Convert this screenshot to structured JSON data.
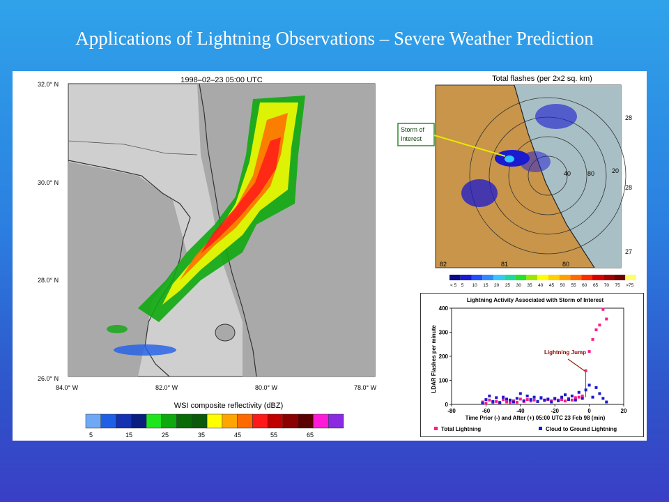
{
  "slide": {
    "title": "Applications of Lightning Observations – Severe Weather Prediction"
  },
  "radar_map": {
    "title": "1998–02–23    05:00 UTC",
    "lat_labels": [
      "32.0° N",
      "30.0° N",
      "28.0° N",
      "26.0° N"
    ],
    "lon_labels": [
      "84.0° W",
      "82.0° W",
      "80.0° W",
      "78.0° W"
    ],
    "legend_title": "WSI composite reflectivity (dBZ)",
    "legend_ticks": [
      "5",
      "15",
      "25",
      "35",
      "45",
      "55",
      "65"
    ],
    "legend_colors": [
      "#6fa8f5",
      "#1f5fe8",
      "#1530b0",
      "#0a1e80",
      "#1ee51e",
      "#0fa80f",
      "#086b08",
      "#0a5a0a",
      "#ffff00",
      "#ffa500",
      "#ff6a00",
      "#ff1a1a",
      "#c00000",
      "#8b0000",
      "#5a0000",
      "#ff1ad9",
      "#8a2be2"
    ]
  },
  "flash_map": {
    "title": "Total flashes (per 2x2 sq. km)",
    "callout": [
      "Storm of",
      "Interest"
    ],
    "range_labels": [
      "40",
      "80",
      "20"
    ],
    "right_labels": [
      "28",
      "28",
      "27"
    ],
    "bottom_labels": [
      "82",
      "81",
      "80"
    ],
    "colorbar_labels": [
      "< 5",
      "5",
      "10",
      "15",
      "20",
      "25",
      "30",
      "35",
      "40",
      "45",
      "50",
      "55",
      "60",
      "65",
      "70",
      "75",
      ">75"
    ],
    "colorbar_colors": [
      "#0a0a8a",
      "#1a1acf",
      "#1f4fff",
      "#2e8bff",
      "#36c7ff",
      "#1fd8a0",
      "#28e028",
      "#9de600",
      "#ffff00",
      "#ffd000",
      "#ffa000",
      "#ff6a00",
      "#ff2a00",
      "#d80000",
      "#a00000",
      "#700000",
      "#ffff66"
    ]
  },
  "chart_data": {
    "type": "scatter",
    "title": "Lightning Activity Associated with Storm of Interest",
    "xlabel": "Time Prior (-) and After (+) 05:00 UTC 23 Feb 98 (min)",
    "ylabel": "LDAR Flashes per minute",
    "xlim": [
      -80,
      20
    ],
    "ylim": [
      0,
      400
    ],
    "xticks": [
      -80,
      -60,
      -40,
      -20,
      0,
      20
    ],
    "yticks": [
      0,
      100,
      200,
      300,
      400
    ],
    "annotation": "Lightning Jump",
    "legend_placement": "bottom",
    "series": [
      {
        "name": "Total Lightning",
        "color": "#ff1a8c",
        "x": [
          -62,
          -60,
          -58,
          -56,
          -54,
          -52,
          -50,
          -48,
          -46,
          -44,
          -42,
          -40,
          -38,
          -36,
          -34,
          -32,
          -30,
          -28,
          -26,
          -24,
          -22,
          -20,
          -18,
          -16,
          -14,
          -12,
          -10,
          -8,
          -6,
          -4,
          -2,
          0,
          2,
          4,
          6,
          8,
          10
        ],
        "y": [
          10,
          5,
          18,
          8,
          12,
          6,
          20,
          10,
          8,
          15,
          9,
          22,
          12,
          20,
          14,
          18,
          12,
          25,
          16,
          20,
          15,
          22,
          18,
          20,
          14,
          25,
          18,
          28,
          30,
          35,
          140,
          220,
          270,
          310,
          330,
          395,
          355
        ]
      },
      {
        "name": "Cloud to Ground Lightning",
        "color": "#1a1acf",
        "x": [
          -62,
          -60,
          -58,
          -56,
          -54,
          -52,
          -50,
          -48,
          -46,
          -44,
          -42,
          -40,
          -38,
          -36,
          -34,
          -32,
          -30,
          -28,
          -26,
          -24,
          -22,
          -20,
          -18,
          -16,
          -14,
          -12,
          -10,
          -8,
          -6,
          -4,
          -2,
          0,
          2,
          4,
          6,
          8,
          10
        ],
        "y": [
          5,
          20,
          35,
          12,
          28,
          8,
          30,
          22,
          18,
          10,
          25,
          45,
          15,
          35,
          20,
          30,
          12,
          28,
          18,
          22,
          10,
          25,
          15,
          30,
          40,
          20,
          35,
          18,
          50,
          25,
          60,
          80,
          30,
          70,
          45,
          25,
          10
        ]
      }
    ]
  }
}
